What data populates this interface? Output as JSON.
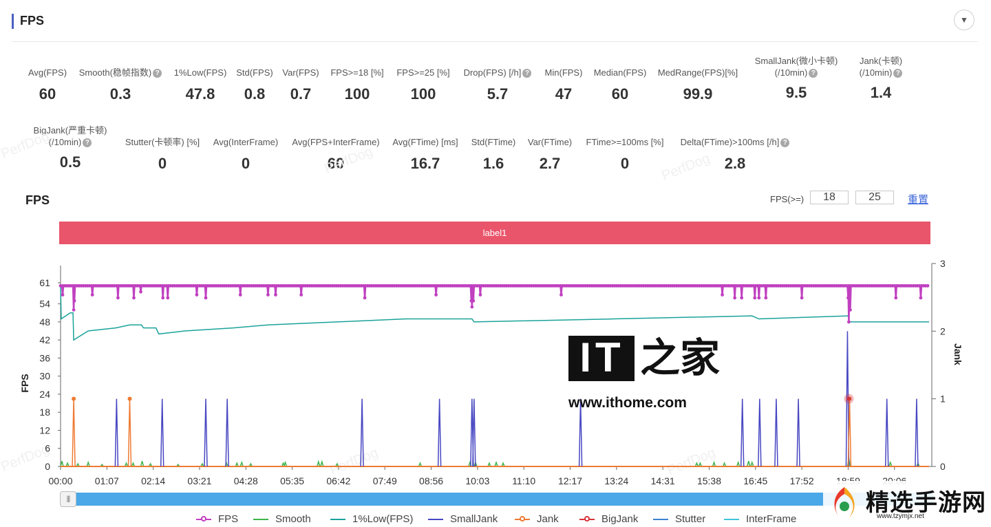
{
  "panel": {
    "title": "FPS",
    "collapse_icon": "chevron-down-icon"
  },
  "stats_row1": [
    {
      "label": "Avg(FPS)",
      "value": "60",
      "help": false
    },
    {
      "label": "Smooth(稳帧指数)",
      "value": "0.3",
      "help": true
    },
    {
      "label": "1%Low(FPS)",
      "value": "47.8",
      "help": false
    },
    {
      "label": "Std(FPS)",
      "value": "0.8",
      "help": false
    },
    {
      "label": "Var(FPS)",
      "value": "0.7",
      "help": false
    },
    {
      "label": "FPS>=18 [%]",
      "value": "100",
      "help": false
    },
    {
      "label": "FPS>=25 [%]",
      "value": "100",
      "help": false
    },
    {
      "label": "Drop(FPS) [/h]",
      "value": "5.7",
      "help": true
    },
    {
      "label": "Min(FPS)",
      "value": "47",
      "help": false
    },
    {
      "label": "Median(FPS)",
      "value": "60",
      "help": false
    },
    {
      "label": "MedRange(FPS)[%]",
      "value": "99.9",
      "help": false
    },
    {
      "label": "SmallJank(微小卡顿)",
      "label2": "(/10min)",
      "value": "9.5",
      "help": true
    },
    {
      "label": "Jank(卡顿)",
      "label2": "(/10min)",
      "value": "1.4",
      "help": true
    }
  ],
  "stats_row2": [
    {
      "label": "BigJank(严重卡顿)",
      "label2": "(/10min)",
      "value": "0.5",
      "help": true
    },
    {
      "label": "Stutter(卡顿率) [%]",
      "value": "0",
      "help": false
    },
    {
      "label": "Avg(InterFrame)",
      "value": "0",
      "help": false
    },
    {
      "label": "Avg(FPS+InterFrame)",
      "value": "60",
      "help": false
    },
    {
      "label": "Avg(FTime) [ms]",
      "value": "16.7",
      "help": false
    },
    {
      "label": "Std(FTime)",
      "value": "1.6",
      "help": false
    },
    {
      "label": "Var(FTime)",
      "value": "2.7",
      "help": false
    },
    {
      "label": "FTime>=100ms [%]",
      "value": "0",
      "help": false
    },
    {
      "label": "Delta(FTime)>100ms [/h]",
      "value": "2.8",
      "help": true
    }
  ],
  "chart_section": {
    "title": "FPS",
    "threshold_label": "FPS(>=)",
    "threshold_low": "18",
    "threshold_high": "25",
    "reset_label": "重置",
    "band_label": "label1",
    "slider_handle": "|||"
  },
  "chart_data": {
    "type": "line",
    "xlabel": "",
    "ylabel_left": "FPS",
    "ylabel_right": "Jank",
    "x_ticks": [
      "00:00",
      "01:07",
      "02:14",
      "03:21",
      "04:28",
      "05:35",
      "06:42",
      "07:49",
      "08:56",
      "10:03",
      "11:10",
      "12:17",
      "13:24",
      "14:31",
      "15:38",
      "16:45",
      "17:52",
      "18:59",
      "20:06"
    ],
    "y_left_ticks": [
      0,
      6,
      12,
      18,
      24,
      30,
      36,
      42,
      48,
      54,
      61
    ],
    "y_left_range": [
      0,
      61
    ],
    "y_right_ticks": [
      0,
      1,
      2,
      3
    ],
    "y_right_range": [
      0,
      3
    ],
    "duration_seconds": 1256,
    "series": [
      {
        "name": "FPS",
        "color": "#c040c0",
        "baseline": 60,
        "dips": [
          [
            3,
            57
          ],
          [
            19,
            52
          ],
          [
            20,
            55
          ],
          [
            46,
            57
          ],
          [
            83,
            56
          ],
          [
            106,
            56
          ],
          [
            116,
            58
          ],
          [
            148,
            56
          ],
          [
            155,
            56
          ],
          [
            197,
            57
          ],
          [
            210,
            56
          ],
          [
            260,
            57
          ],
          [
            300,
            57
          ],
          [
            311,
            57
          ],
          [
            348,
            57
          ],
          [
            440,
            56
          ],
          [
            543,
            57
          ],
          [
            594,
            55
          ],
          [
            595,
            53
          ],
          [
            597,
            55
          ],
          [
            607,
            57
          ],
          [
            724,
            57
          ],
          [
            957,
            57
          ],
          [
            975,
            56
          ],
          [
            985,
            56
          ],
          [
            1004,
            56
          ],
          [
            1010,
            56
          ],
          [
            1020,
            56
          ],
          [
            1072,
            56
          ],
          [
            1139,
            56
          ],
          [
            1140,
            48
          ],
          [
            1142,
            52
          ],
          [
            1208,
            56
          ],
          [
            1244,
            56
          ]
        ]
      },
      {
        "name": "1%Low(FPS)",
        "color": "#1aa29a",
        "points": [
          [
            0,
            60
          ],
          [
            1,
            49
          ],
          [
            14,
            51
          ],
          [
            18,
            51
          ],
          [
            19,
            42
          ],
          [
            40,
            45
          ],
          [
            80,
            46
          ],
          [
            100,
            47
          ],
          [
            117,
            47
          ],
          [
            120,
            46
          ],
          [
            138,
            46
          ],
          [
            142,
            44
          ],
          [
            180,
            45
          ],
          [
            250,
            46
          ],
          [
            300,
            47
          ],
          [
            400,
            48
          ],
          [
            500,
            49
          ],
          [
            595,
            49
          ],
          [
            598,
            48
          ],
          [
            800,
            49
          ],
          [
            1000,
            50
          ],
          [
            1010,
            49
          ],
          [
            1139,
            50
          ],
          [
            1141,
            48
          ],
          [
            1256,
            48
          ]
        ]
      },
      {
        "name": "SmallJank",
        "color": "#4747c2",
        "spikes": [
          [
            81,
            1
          ],
          [
            147,
            1
          ],
          [
            210,
            1
          ],
          [
            241,
            1
          ],
          [
            436,
            1
          ],
          [
            595,
            1
          ],
          [
            598,
            1
          ],
          [
            548,
            1
          ],
          [
            752,
            1
          ],
          [
            986,
            1
          ],
          [
            1011,
            1
          ],
          [
            1035,
            1
          ],
          [
            1067,
            1
          ],
          [
            1138,
            2
          ],
          [
            1195,
            1
          ],
          [
            1238,
            1
          ]
        ]
      },
      {
        "name": "Jank",
        "color": "#ee7a32",
        "spikes": [
          [
            19,
            1
          ],
          [
            100,
            1
          ],
          [
            1141,
            1
          ]
        ]
      },
      {
        "name": "BigJank",
        "color": "#d6343a",
        "spikes": [
          [
            1140,
            1
          ]
        ]
      },
      {
        "name": "Smooth",
        "color": "#3cb44a",
        "bumps": [
          [
            2,
            0.08
          ],
          [
            10,
            0.05
          ],
          [
            25,
            0.04
          ],
          [
            40,
            0.06
          ],
          [
            60,
            0.03
          ],
          [
            95,
            0.05
          ],
          [
            105,
            0.05
          ],
          [
            118,
            0.08
          ],
          [
            130,
            0.04
          ],
          [
            170,
            0.03
          ],
          [
            205,
            0.04
          ],
          [
            240,
            0.05
          ],
          [
            255,
            0.05
          ],
          [
            262,
            0.06
          ],
          [
            275,
            0.04
          ],
          [
            322,
            0.05
          ],
          [
            325,
            0.06
          ],
          [
            373,
            0.07
          ],
          [
            378,
            0.07
          ],
          [
            400,
            0.04
          ],
          [
            520,
            0.05
          ],
          [
            592,
            0.06
          ],
          [
            600,
            0.06
          ],
          [
            620,
            0.05
          ],
          [
            630,
            0.06
          ],
          [
            640,
            0.05
          ],
          [
            920,
            0.05
          ],
          [
            925,
            0.05
          ],
          [
            945,
            0.06
          ],
          [
            960,
            0.05
          ],
          [
            980,
            0.06
          ],
          [
            995,
            0.08
          ],
          [
            1000,
            0.06
          ],
          [
            1140,
            0.12
          ],
          [
            1200,
            0.06
          ],
          [
            1240,
            0.05
          ]
        ]
      },
      {
        "name": "Stutter",
        "color": "#3c82cf",
        "values": []
      },
      {
        "name": "InterFrame",
        "color": "#3fc3d9",
        "values": []
      }
    ]
  },
  "watermarks": [
    "PerfDog",
    "PerfDog",
    "PerfDog",
    "PerfDog",
    "PerfDog",
    "PerfDog"
  ],
  "overlay_logo": {
    "it": "IT",
    "jia": "之家",
    "url": "www.ithome.com"
  },
  "site_logo": {
    "name": "精选手游网",
    "domain": "www.tzymjx.net"
  }
}
